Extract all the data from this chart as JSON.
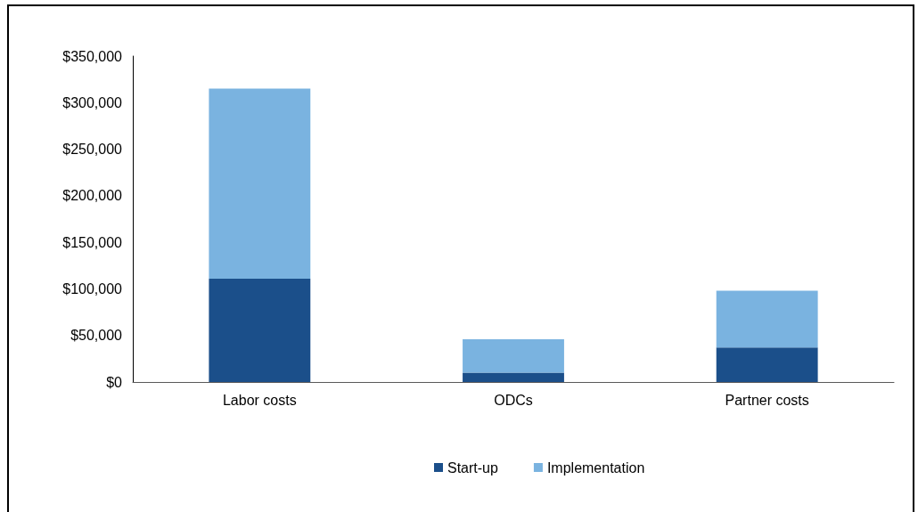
{
  "chart_data": {
    "type": "bar",
    "categories": [
      "Labor costs",
      "ODCs",
      "Partner costs"
    ],
    "series": [
      {
        "name": "Start-up",
        "color": "#1b4f8a",
        "values": [
          111000,
          10000,
          37000
        ]
      },
      {
        "name": "Implementation",
        "color": "#7ab3e0",
        "values": [
          204000,
          36000,
          61000
        ]
      }
    ],
    "stacked": true,
    "ylim": [
      0,
      350000
    ],
    "yticks": [
      {
        "value": 0,
        "label": "$0"
      },
      {
        "value": 50000,
        "label": "$50,000"
      },
      {
        "value": 100000,
        "label": "$100,000"
      },
      {
        "value": 150000,
        "label": "$150,000"
      },
      {
        "value": 200000,
        "label": "$200,000"
      },
      {
        "value": 250000,
        "label": "$250,000"
      },
      {
        "value": 300000,
        "label": "$300,000"
      },
      {
        "value": 350000,
        "label": "$350,000"
      }
    ],
    "legend": "bottom"
  }
}
